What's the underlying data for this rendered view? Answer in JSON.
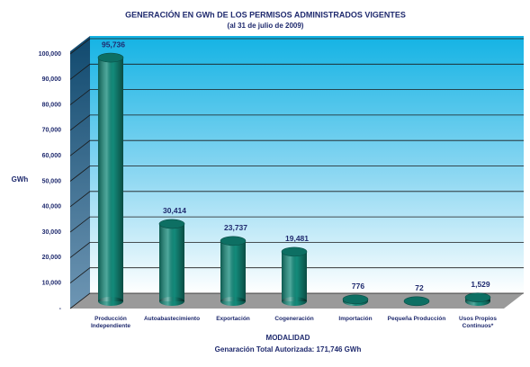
{
  "chart_data": {
    "type": "bar",
    "title": "GENERACIÓN EN GWh DE LOS PERMISOS ADMINISTRADOS VIGENTES",
    "subtitle": "(al 31 de julio de 2009)",
    "y_label": "GWh",
    "x_label": "MODALIDAD",
    "footnote": "Genaración Total Autorizada: 171,746 GWh",
    "categories": [
      "Producción Independiente",
      "Autoabastecimiento",
      "Exportación",
      "Cogeneración",
      "Importación",
      "Pequeña Producción",
      "Usos Propios Continuos*"
    ],
    "values": [
      95736,
      30414,
      23737,
      19481,
      776,
      72,
      1529
    ],
    "value_labels": [
      "95,736",
      "30,414",
      "23,737",
      "19,481",
      "776",
      "72",
      "1,529"
    ],
    "color": "#138a7a",
    "ylim": [
      0,
      100000
    ],
    "yticks": [
      {
        "value": 0,
        "label": "-"
      },
      {
        "value": 10000,
        "label": "10,000"
      },
      {
        "value": 20000,
        "label": "20,000"
      },
      {
        "value": 30000,
        "label": "30,000"
      },
      {
        "value": 40000,
        "label": "40,000"
      },
      {
        "value": 50000,
        "label": "50,000"
      },
      {
        "value": 60000,
        "label": "60,000"
      },
      {
        "value": 70000,
        "label": "70,000"
      },
      {
        "value": 80000,
        "label": "80,000"
      },
      {
        "value": 90000,
        "label": "90,000"
      },
      {
        "value": 100000,
        "label": "100,000"
      }
    ],
    "grid": true
  }
}
